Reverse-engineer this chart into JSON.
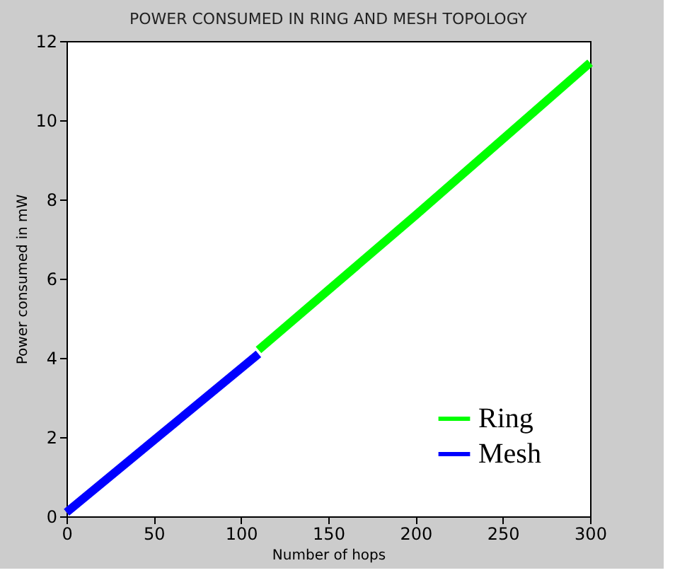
{
  "chart_data": {
    "type": "line",
    "title": "POWER CONSUMED IN RING AND MESH TOPOLOGY",
    "xlabel": "Number of hops",
    "ylabel": "Power consumed in mW",
    "series": [
      {
        "name": "Ring",
        "color": "#00ff00",
        "x": [
          110,
          200,
          300
        ],
        "values": [
          4.2,
          7.6,
          11.45
        ]
      },
      {
        "name": "Mesh",
        "color": "#0000ff",
        "x": [
          0,
          55,
          110
        ],
        "values": [
          0.1,
          2.1,
          4.1
        ]
      }
    ],
    "xlim": [
      0,
      300
    ],
    "xticks": [
      0,
      50,
      100,
      150,
      200,
      250,
      300
    ],
    "ylim": [
      0,
      12
    ],
    "yticks": [
      0,
      2,
      4,
      6,
      8,
      10,
      12
    ],
    "grid": false,
    "legend": "bottom right",
    "marker": "none",
    "line_style": "solid"
  }
}
